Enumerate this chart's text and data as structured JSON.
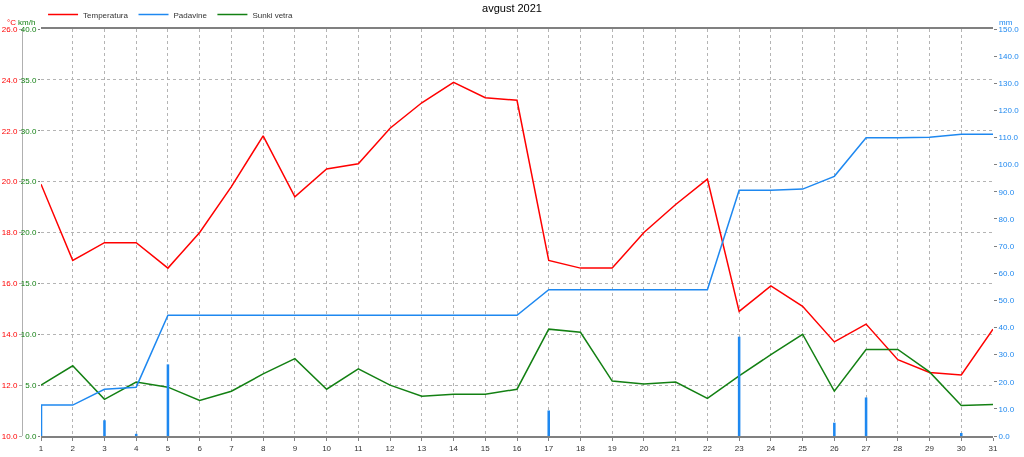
{
  "chart_data": {
    "type": "line",
    "title": "avgust 2021",
    "ylabel": "°C",
    "y2label": "km/h",
    "y3label": "mm",
    "x": [
      1,
      2,
      3,
      4,
      5,
      6,
      7,
      8,
      9,
      10,
      11,
      12,
      13,
      14,
      15,
      16,
      17,
      18,
      19,
      20,
      21,
      22,
      23,
      24,
      25,
      26,
      27,
      28,
      29,
      30,
      31
    ],
    "xlim": [
      1,
      31
    ],
    "xticks": [
      1,
      2,
      3,
      4,
      5,
      6,
      7,
      8,
      9,
      10,
      11,
      12,
      13,
      14,
      15,
      16,
      17,
      18,
      19,
      20,
      21,
      22,
      23,
      24,
      25,
      26,
      27,
      28,
      29,
      30,
      31
    ],
    "ylim": [
      10,
      26
    ],
    "yticks": [
      {
        "value": 10,
        "label": "10.0"
      },
      {
        "value": 12,
        "label": "12.0"
      },
      {
        "value": 14,
        "label": "14.0"
      },
      {
        "value": 16,
        "label": "16.0"
      },
      {
        "value": 18,
        "label": "18.0"
      },
      {
        "value": 20,
        "label": "20.0"
      },
      {
        "value": 22,
        "label": "22.0"
      },
      {
        "value": 24,
        "label": "24.0"
      },
      {
        "value": 26,
        "label": "26.0"
      }
    ],
    "y2lim": [
      0,
      40
    ],
    "y2ticks": [
      {
        "value": 0,
        "label": "0.0"
      },
      {
        "value": 5,
        "label": "5.0"
      },
      {
        "value": 10,
        "label": "10.0"
      },
      {
        "value": 15,
        "label": "15.0"
      },
      {
        "value": 20,
        "label": "20.0"
      },
      {
        "value": 25,
        "label": "25.0"
      },
      {
        "value": 30,
        "label": "30.0"
      },
      {
        "value": 35,
        "label": "35.0"
      },
      {
        "value": 40,
        "label": "40.0"
      }
    ],
    "y3lim": [
      0,
      150
    ],
    "y3ticks": [
      {
        "value": 0,
        "label": "0.0"
      },
      {
        "value": 10,
        "label": "10.0"
      },
      {
        "value": 20,
        "label": "20.0"
      },
      {
        "value": 30,
        "label": "30.0"
      },
      {
        "value": 40,
        "label": "40.0"
      },
      {
        "value": 50,
        "label": "50.0"
      },
      {
        "value": 60,
        "label": "60.0"
      },
      {
        "value": 70,
        "label": "70.0"
      },
      {
        "value": 80,
        "label": "80.0"
      },
      {
        "value": 90,
        "label": "90.0"
      },
      {
        "value": 100,
        "label": "100.0"
      },
      {
        "value": 110,
        "label": "110.0"
      },
      {
        "value": 120,
        "label": "120.0"
      },
      {
        "value": 130,
        "label": "130.0"
      },
      {
        "value": 140,
        "label": "140.0"
      },
      {
        "value": 150,
        "label": "150.0"
      }
    ],
    "grid": true,
    "legend": "top left",
    "marker": "none",
    "line_style": "solid",
    "series": [
      {
        "name": "Temperatura",
        "color": "#ff0000",
        "axis": "y",
        "values": [
          19.9,
          16.9,
          17.6,
          17.6,
          16.6,
          18.0,
          19.8,
          21.8,
          19.4,
          20.5,
          20.7,
          22.1,
          23.1,
          23.9,
          23.3,
          23.2,
          16.9,
          16.6,
          16.6,
          18.0,
          19.1,
          20.1,
          14.9,
          15.9,
          15.1,
          13.7,
          14.4,
          13.0,
          12.5,
          12.4,
          14.2
        ]
      },
      {
        "name": "Padavine",
        "color": "#1e88f0",
        "axis": "y3",
        "values": [
          11.4,
          11.4,
          17.2,
          18.0,
          44.5,
          44.5,
          44.5,
          44.5,
          44.5,
          44.5,
          44.5,
          44.5,
          44.5,
          44.5,
          44.5,
          44.5,
          53.9,
          53.9,
          53.9,
          53.9,
          53.9,
          53.9,
          90.6,
          90.6,
          91.0,
          95.7,
          109.9,
          109.9,
          110.1,
          111.2,
          111.2
        ]
      },
      {
        "color": "#1e88f0",
        "type": "bar",
        "axis": "y3",
        "values": [
          11.4,
          null,
          5.8,
          0.8,
          26.4,
          null,
          null,
          null,
          null,
          null,
          null,
          null,
          null,
          null,
          null,
          null,
          9.4,
          null,
          null,
          null,
          null,
          null,
          36.6,
          null,
          null,
          4.9,
          14.2,
          null,
          null,
          1.1,
          null
        ]
      },
      {
        "name": "Sunki vetra",
        "color": "#138013",
        "axis": "y2",
        "values": [
          5.0,
          6.9,
          3.6,
          5.3,
          4.8,
          3.5,
          4.4,
          6.1,
          7.6,
          4.6,
          6.6,
          5.0,
          3.9,
          4.1,
          4.1,
          4.6,
          10.5,
          10.2,
          5.4,
          5.1,
          5.3,
          3.7,
          5.9,
          8.0,
          10.0,
          4.4,
          8.5,
          8.5,
          6.3,
          3.0,
          3.1
        ]
      }
    ]
  }
}
